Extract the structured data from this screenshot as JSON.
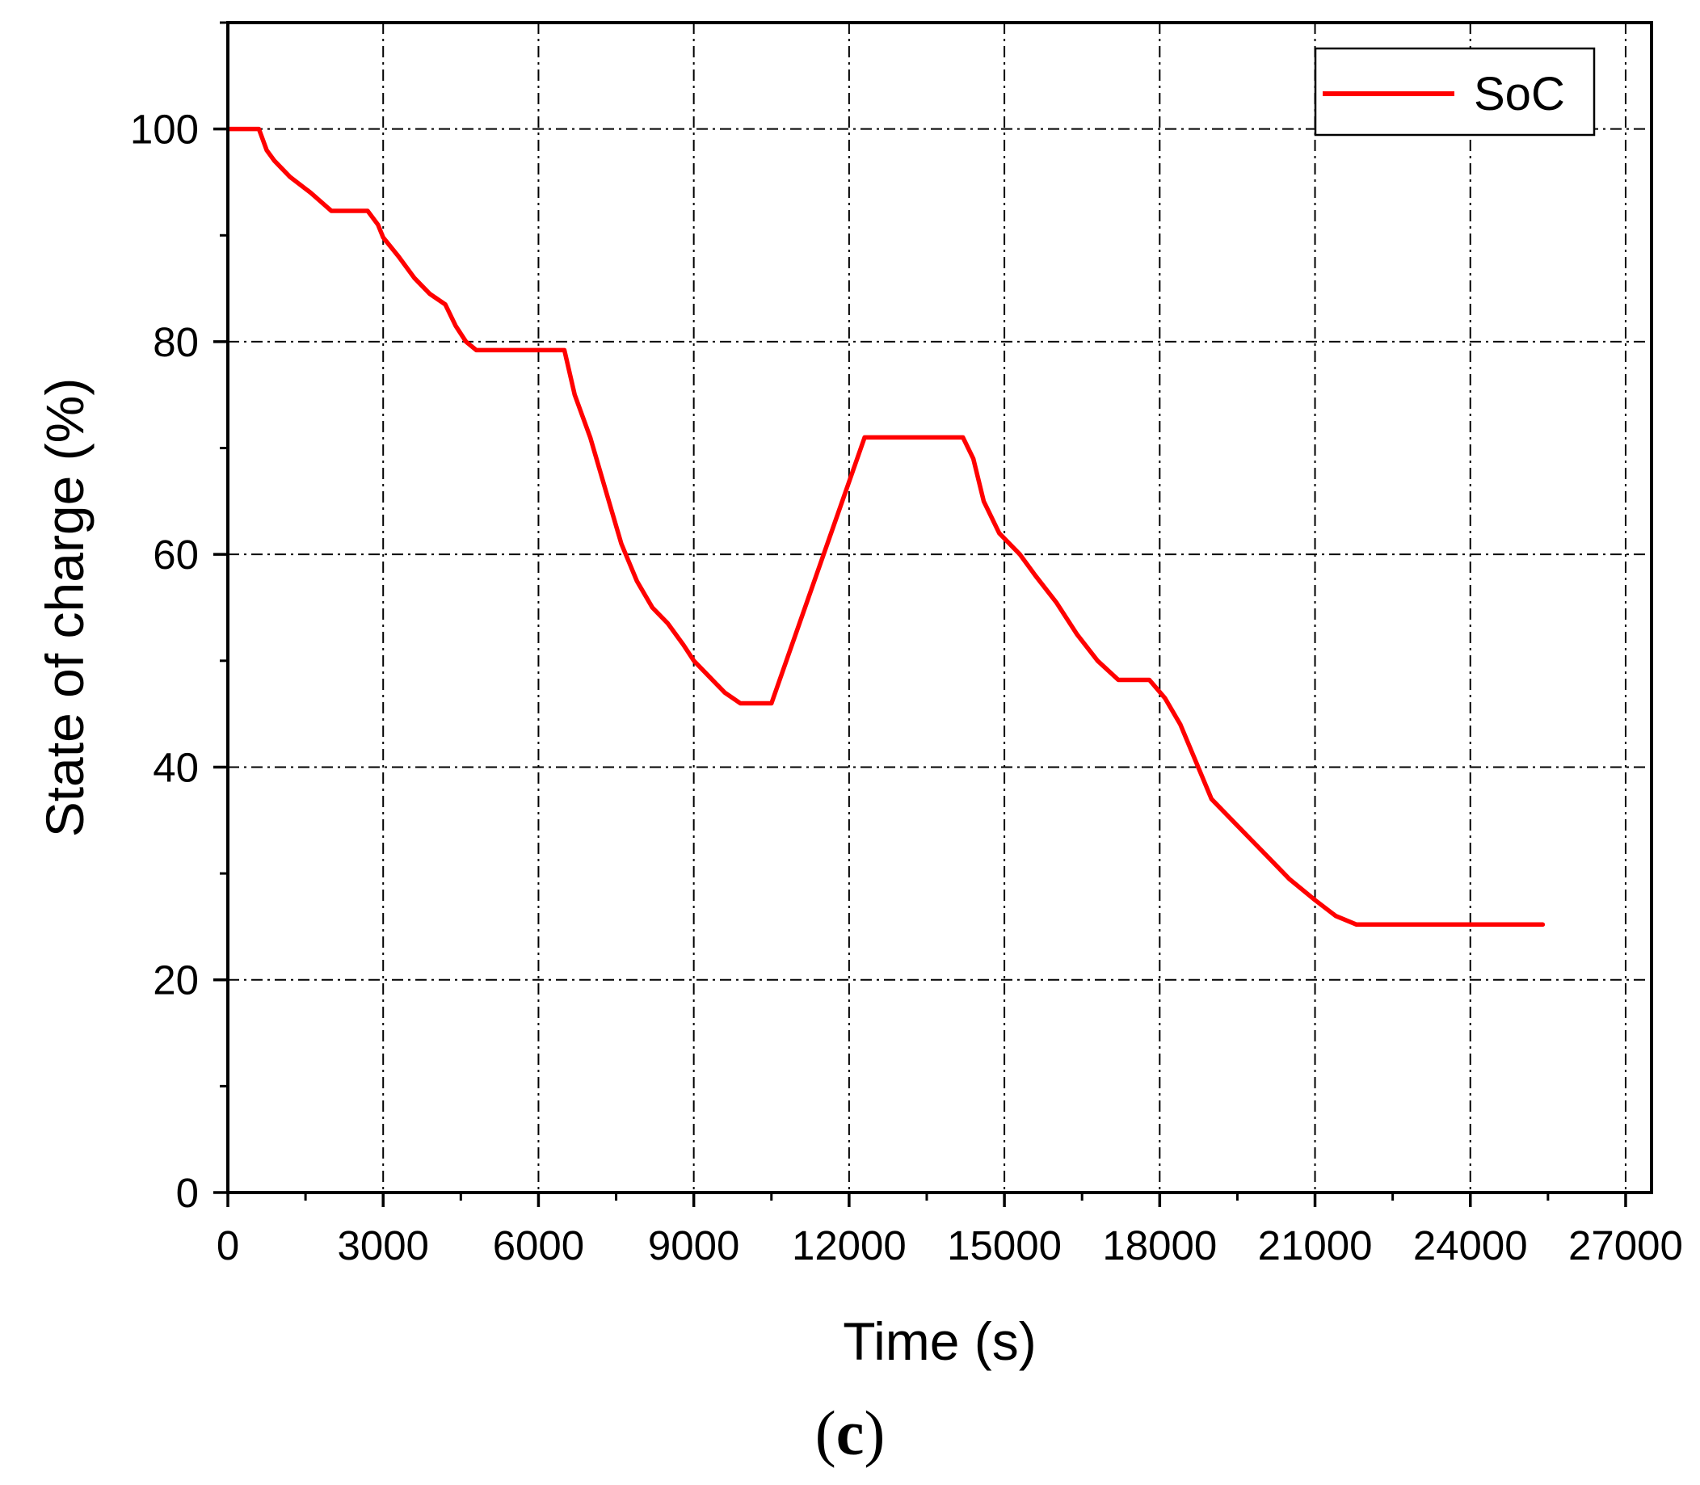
{
  "chart_data": {
    "type": "line",
    "xlabel": "Time (s)",
    "ylabel": "State of charge (%)",
    "xlim": [
      0,
      27500
    ],
    "ylim": [
      0,
      110
    ],
    "xticks": [
      0,
      3000,
      6000,
      9000,
      12000,
      15000,
      18000,
      21000,
      24000,
      27000
    ],
    "xtick_labels": [
      "0",
      "3000",
      "6000",
      "9000",
      "12000",
      "15000",
      "18000",
      "21000",
      "24000",
      "27000"
    ],
    "yticks": [
      0,
      20,
      40,
      60,
      80,
      100
    ],
    "ytick_labels": [
      "0",
      "20",
      "40",
      "60",
      "80",
      "100"
    ],
    "grid": true,
    "grid_style": "dash-dot",
    "legend_position": "top-right",
    "series": [
      {
        "name": "SoC",
        "color": "#ff0000",
        "x": [
          0,
          600,
          750,
          900,
          1200,
          1600,
          2000,
          2700,
          2900,
          3000,
          3300,
          3600,
          3900,
          4200,
          4400,
          4600,
          4800,
          6500,
          6700,
          7000,
          7300,
          7600,
          7900,
          8200,
          8500,
          8800,
          9000,
          9300,
          9600,
          9900,
          10500,
          12300,
          14200,
          14400,
          14600,
          14900,
          15300,
          15600,
          16000,
          16400,
          16800,
          17200,
          17800,
          18100,
          18400,
          18700,
          19000,
          19300,
          19700,
          20100,
          20500,
          21000,
          21400,
          21800,
          25400
        ],
        "y": [
          100,
          100,
          98,
          97,
          95.5,
          94,
          92.3,
          92.3,
          91,
          89.8,
          88,
          86,
          84.5,
          83.5,
          81.5,
          80,
          79.2,
          79.2,
          75,
          71,
          66,
          61,
          57.5,
          55,
          53.5,
          51.5,
          50,
          48.5,
          47,
          46,
          46,
          71,
          71,
          69,
          65,
          62,
          60,
          58,
          55.5,
          52.5,
          50,
          48.2,
          48.2,
          46.5,
          44,
          40.5,
          37,
          35.5,
          33.5,
          31.5,
          29.5,
          27.5,
          26,
          25.2,
          25.2
        ]
      }
    ]
  },
  "panel_label": {
    "open": "(",
    "letter": "c",
    "close": ")"
  }
}
